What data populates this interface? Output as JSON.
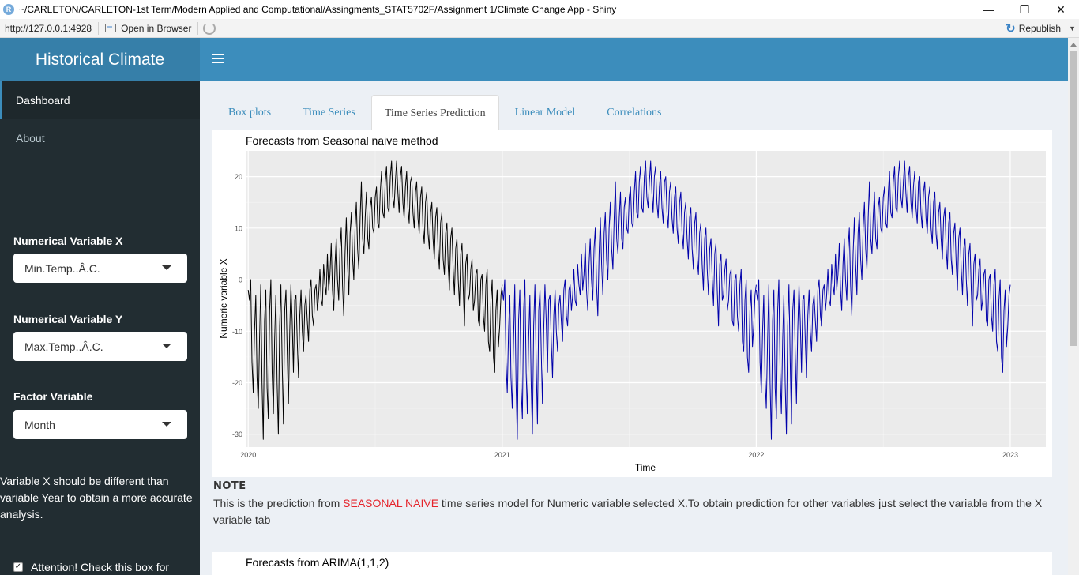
{
  "window": {
    "title": "~/CARLETON/CARLETON-1st Term/Modern Applied and Computational/Assingments_STAT5702F/Assignment 1/Climate Change App - Shiny",
    "app_icon": "R",
    "minimize": "—",
    "restore": "❐",
    "close": "✕"
  },
  "addressbar": {
    "url": "http://127.0.0.1:4928",
    "open_in_browser": "Open in Browser",
    "republish": "Republish"
  },
  "header": {
    "brand": "Historical Climate"
  },
  "sidebar": {
    "menu": [
      {
        "label": "Dashboard",
        "active": true
      },
      {
        "label": "About",
        "active": false
      }
    ],
    "numerical_x": {
      "label": "Numerical Variable X",
      "value": "Min.Temp..Â.C."
    },
    "numerical_y": {
      "label": "Numerical Variable Y",
      "value": "Max.Temp..Â.C."
    },
    "factor": {
      "label": "Factor Variable",
      "value": "Month"
    },
    "note": "Variable X should be different than variable Year to obtain a more accurate analysis.",
    "checkbox_label": "Attention! Check this box for",
    "checkbox_checked": true
  },
  "tabs": [
    {
      "label": "Box plots",
      "active": false
    },
    {
      "label": "Time Series",
      "active": false
    },
    {
      "label": "Time Series Prediction",
      "active": true
    },
    {
      "label": "Linear Model",
      "active": false
    },
    {
      "label": "Correlations",
      "active": false
    }
  ],
  "note": {
    "title": "NOTE",
    "text_before": "This is the prediction from ",
    "highlight": "SEASONAL NAIVE",
    "text_after": " time series model for Numeric variable selected X.To obtain prediction for other variables just select the variable from the X variable tab"
  },
  "second_plot": {
    "title": "Forecasts from ARIMA(1,1,2)"
  },
  "colors": {
    "header": "#3c8dbc",
    "brand": "#367fa9",
    "sidebar": "#222d32",
    "history_line": "#000000",
    "forecast_line": "#0000aa",
    "highlight": "#e5242b"
  },
  "chart_data": {
    "type": "line",
    "title": "Forecasts from Seasonal naive method",
    "xlabel": "Time",
    "ylabel": "Numeric variable X",
    "xlim": [
      2019.99,
      2023.14
    ],
    "ylim": [
      -32.5,
      25
    ],
    "x_ticks": [
      {
        "value": 2020,
        "label": "2020"
      },
      {
        "value": 2021,
        "label": "2021"
      },
      {
        "value": 2022,
        "label": "2022"
      },
      {
        "value": 2023,
        "label": "2023"
      }
    ],
    "y_ticks": [
      20,
      10,
      0,
      -10,
      -20,
      -30
    ],
    "grid": true,
    "series": [
      {
        "key": "history",
        "color": "#000000",
        "x_start": 2020.0,
        "x_end": 2021.0,
        "values": [
          -2,
          -4,
          0,
          -16,
          -22,
          -10,
          -3,
          -19,
          -25,
          -12,
          -1,
          -20,
          -31,
          -8,
          -2,
          -21,
          -27,
          -6,
          0,
          -18,
          -26,
          -12,
          -3,
          -20,
          -30,
          -9,
          -1,
          -16,
          -28,
          -6,
          -2,
          -14,
          -24,
          -10,
          -1,
          -8,
          -18,
          -4,
          -3,
          -12,
          -19,
          -7,
          -2,
          -10,
          -14,
          -5,
          -3,
          -8,
          -12,
          -2,
          0,
          -7,
          -9,
          -2,
          -1,
          -6,
          -3,
          2,
          -4,
          -5,
          3,
          -1,
          -3,
          5,
          -2,
          1,
          7,
          -2,
          -6,
          3,
          8,
          0,
          -4,
          6,
          10,
          -1,
          -7,
          5,
          12,
          3,
          -3,
          9,
          13,
          4,
          0,
          10,
          15,
          6,
          2,
          12,
          19,
          8,
          5,
          12,
          17,
          8,
          6,
          14,
          16,
          10,
          9,
          16,
          18,
          11,
          10,
          17,
          21,
          13,
          12,
          19,
          22,
          14,
          13,
          20,
          23,
          16,
          14,
          19,
          23,
          17,
          13,
          20,
          22,
          15,
          12,
          18,
          21,
          14,
          11,
          19,
          20,
          13,
          10,
          17,
          19,
          12,
          9,
          16,
          18,
          10,
          7,
          15,
          17,
          9,
          6,
          13,
          15,
          8,
          4,
          12,
          14,
          6,
          2,
          11,
          13,
          4,
          1,
          9,
          11,
          3,
          -2,
          8,
          10,
          2,
          -3,
          6,
          8,
          0,
          -5,
          5,
          7,
          -2,
          -9,
          3,
          5,
          -4,
          -3,
          2,
          4,
          -6,
          -4,
          1,
          2,
          -8,
          -9,
          0,
          1,
          -7,
          -10,
          -1,
          2,
          -12,
          -14,
          -4,
          0,
          -15,
          -18,
          -6,
          -2,
          -13,
          -9,
          -3,
          -1
        ]
      },
      {
        "key": "forecast",
        "color": "#0000aa",
        "x_start": 2021.0,
        "x_end": 2023.0,
        "repeats_history": 2
      }
    ]
  }
}
